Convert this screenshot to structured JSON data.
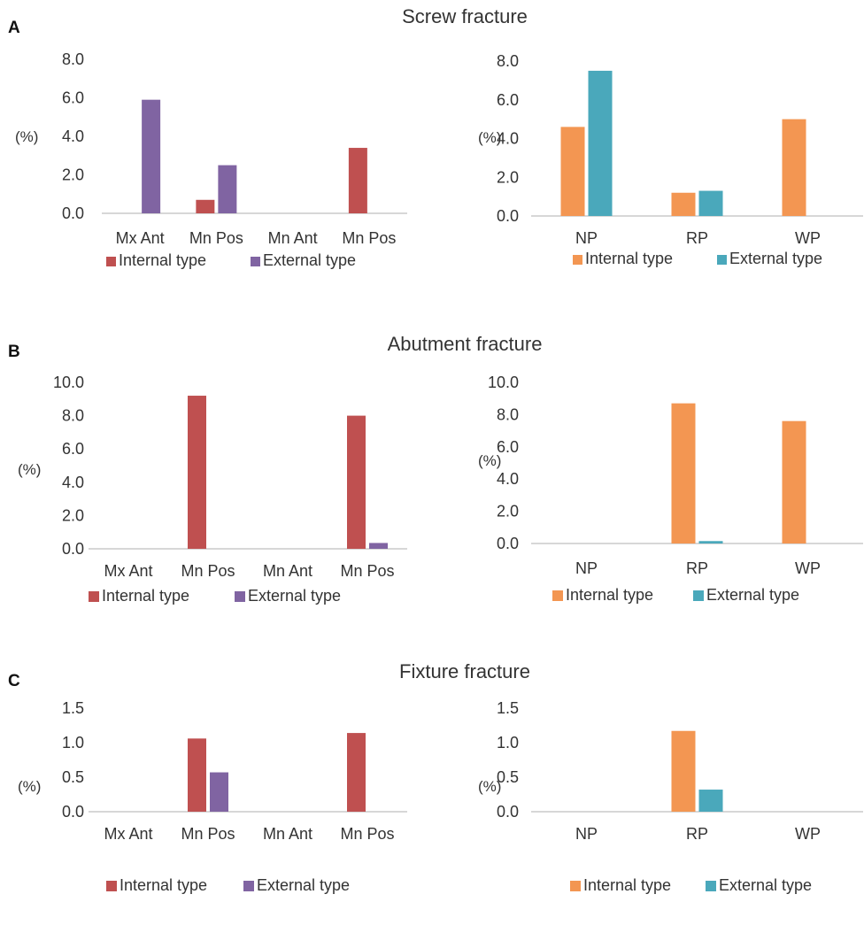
{
  "panels": [
    {
      "letter": "A",
      "title": "Screw fracture"
    },
    {
      "letter": "B",
      "title": "Abutment fracture"
    },
    {
      "letter": "C",
      "title": "Fixture fracture"
    }
  ],
  "colors": {
    "internal_location": "#bf5050",
    "external_location": "#8064a2",
    "internal_size": "#f39652",
    "external_size": "#4aa8bb"
  },
  "chart_data": [
    {
      "type": "bar",
      "panel": "A",
      "title": "Screw fracture",
      "categories": [
        "Mx Ant",
        "Mn Pos",
        "Mn Ant",
        "Mn Pos"
      ],
      "series": [
        {
          "name": "Internal type",
          "values": [
            0,
            0.7,
            0,
            3.4
          ]
        },
        {
          "name": "External type",
          "values": [
            5.9,
            2.5,
            0,
            0
          ]
        }
      ],
      "ylabel": "(%)",
      "ylim": [
        0,
        8
      ],
      "yticks": [
        "0.0",
        "2.0",
        "4.0",
        "6.0",
        "8.0"
      ],
      "ytick_values": [
        0,
        2,
        4,
        6,
        8
      ],
      "colors": [
        "#bf5050",
        "#8064a2"
      ],
      "legend": "bottom",
      "grid": false
    },
    {
      "type": "bar",
      "panel": "A",
      "categories": [
        "NP",
        "RP",
        "WP"
      ],
      "series": [
        {
          "name": "Internal type",
          "values": [
            4.6,
            1.2,
            5.0
          ]
        },
        {
          "name": "External type",
          "values": [
            7.5,
            1.3,
            0
          ]
        }
      ],
      "ylabel": "(%)",
      "ylim": [
        0,
        8
      ],
      "yticks": [
        "0.0",
        "2.0",
        "4.0",
        "6.0",
        "8.0"
      ],
      "ytick_values": [
        0,
        2,
        4,
        6,
        8
      ],
      "colors": [
        "#f39652",
        "#4aa8bb"
      ],
      "legend": "bottom",
      "grid": false
    },
    {
      "type": "bar",
      "panel": "B",
      "title": "Abutment fracture",
      "categories": [
        "Mx Ant",
        "Mn Pos",
        "Mn Ant",
        "Mn Pos"
      ],
      "series": [
        {
          "name": "Internal type",
          "values": [
            0,
            9.2,
            0,
            8.0
          ]
        },
        {
          "name": "External type",
          "values": [
            0,
            0,
            0,
            0.35
          ]
        }
      ],
      "ylabel": "(%)",
      "ylim": [
        0,
        10
      ],
      "yticks": [
        "0.0",
        "2.0",
        "4.0",
        "6.0",
        "8.0",
        "10.0"
      ],
      "ytick_values": [
        0,
        2,
        4,
        6,
        8,
        10
      ],
      "colors": [
        "#bf5050",
        "#8064a2"
      ],
      "legend": "bottom",
      "grid": false
    },
    {
      "type": "bar",
      "panel": "B",
      "categories": [
        "NP",
        "RP",
        "WP"
      ],
      "series": [
        {
          "name": "Internal type",
          "values": [
            0,
            8.7,
            7.6
          ]
        },
        {
          "name": "External type",
          "values": [
            0,
            0.15,
            0
          ]
        }
      ],
      "ylabel": "(%)",
      "ylim": [
        0,
        10
      ],
      "yticks": [
        "0.0",
        "2.0",
        "4.0",
        "6.0",
        "8.0",
        "10.0"
      ],
      "ytick_values": [
        0,
        2,
        4,
        6,
        8,
        10
      ],
      "colors": [
        "#f39652",
        "#4aa8bb"
      ],
      "legend": "bottom",
      "grid": false
    },
    {
      "type": "bar",
      "panel": "C",
      "title": "Fixture fracture",
      "categories": [
        "Mx Ant",
        "Mn Pos",
        "Mn Ant",
        "Mn Pos"
      ],
      "series": [
        {
          "name": "Internal type",
          "values": [
            0,
            1.06,
            0,
            1.14
          ]
        },
        {
          "name": "External type",
          "values": [
            0,
            0.57,
            0,
            0
          ]
        }
      ],
      "ylabel": "(%)",
      "ylim": [
        0,
        1.5
      ],
      "yticks": [
        "0.0",
        "0.5",
        "1.0",
        "1.5"
      ],
      "ytick_values": [
        0,
        0.5,
        1.0,
        1.5
      ],
      "colors": [
        "#bf5050",
        "#8064a2"
      ],
      "legend": "bottom",
      "grid": false
    },
    {
      "type": "bar",
      "panel": "C",
      "categories": [
        "NP",
        "RP",
        "WP"
      ],
      "series": [
        {
          "name": "Internal type",
          "values": [
            0,
            1.17,
            0
          ]
        },
        {
          "name": "External type",
          "values": [
            0,
            0.32,
            0
          ]
        }
      ],
      "ylabel": "(%)",
      "ylim": [
        0,
        1.5
      ],
      "yticks": [
        "0.0",
        "0.5",
        "1.0",
        "1.5"
      ],
      "ytick_values": [
        0,
        0.5,
        1.0,
        1.5
      ],
      "colors": [
        "#f39652",
        "#4aa8bb"
      ],
      "legend": "bottom",
      "grid": false
    }
  ]
}
